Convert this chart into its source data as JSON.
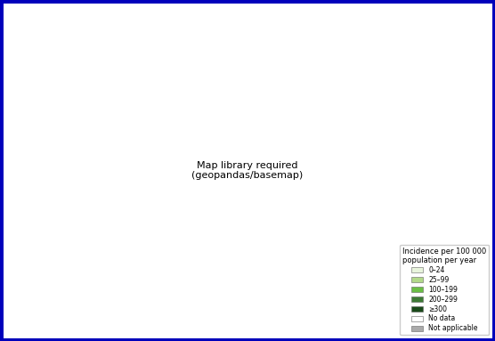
{
  "legend_title": "Incidence per 100 000\npopulation per year",
  "legend_items": [
    {
      "label": "0–24",
      "color": "#e8f4dc"
    },
    {
      "label": "25–99",
      "color": "#b2d98a"
    },
    {
      "label": "100–199",
      "color": "#6abf45"
    },
    {
      "label": "200–299",
      "color": "#3d7a35"
    },
    {
      "label": "≥300",
      "color": "#1a4a1a"
    },
    {
      "label": "No data",
      "color": "#ffffff"
    },
    {
      "label": "Not applicable",
      "color": "#aaaaaa"
    }
  ],
  "background_color": "#ffffff",
  "border_color": "#0000bb",
  "border_linewidth": 5,
  "ocean_color": "#ffffff",
  "country_edge_color": "#777777",
  "country_edge_linewidth": 0.3,
  "figsize": [
    5.56,
    3.83
  ],
  "dpi": 100,
  "legend_fontsize": 5.5,
  "legend_title_fontsize": 6,
  "colors": {
    "0": "#e8f4dc",
    "1": "#b2d98a",
    "2": "#6abf45",
    "3": "#3d7a35",
    "4": "#1a4a1a",
    "5": "#ffffff",
    "6": "#aaaaaa"
  }
}
